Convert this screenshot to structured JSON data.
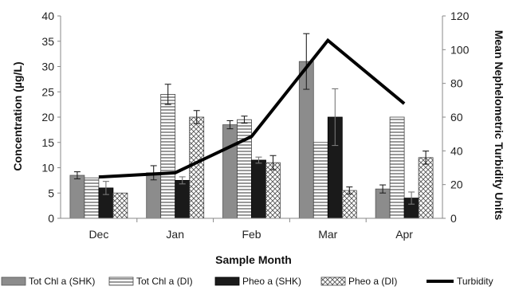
{
  "chart_data": {
    "type": "bar",
    "categories": [
      "Dec",
      "Jan",
      "Feb",
      "Mar",
      "Apr"
    ],
    "xlabel": "Sample Month",
    "ylabel": "Concentration (µg/L)",
    "y2label": "Mean Nephelometric Turbidity  Units",
    "ylim": [
      0,
      40
    ],
    "y2lim": [
      0,
      120
    ],
    "yticks": [
      0,
      5,
      10,
      15,
      20,
      25,
      30,
      35,
      40
    ],
    "y2ticks": [
      0,
      20,
      40,
      60,
      80,
      100,
      120
    ],
    "legend_position": "bottom",
    "series": [
      {
        "name": "Tot Chl a (SHK)",
        "pattern": "solid-gray",
        "color": "#8c8c8c",
        "values": [
          8.5,
          9.0,
          18.5,
          31.0,
          5.8
        ],
        "errors": [
          0.7,
          1.4,
          0.8,
          5.5,
          0.8
        ]
      },
      {
        "name": "Tot Chl a (DI)",
        "pattern": "horizontal-stripes",
        "color": "#ffffff",
        "values": [
          8.0,
          24.5,
          19.5,
          15.0,
          20.0
        ],
        "errors": [
          0,
          2.0,
          0.7,
          0,
          0
        ]
      },
      {
        "name": "Pheo a (SHK)",
        "pattern": "solid-black",
        "color": "#1a1a1a",
        "values": [
          6.0,
          7.5,
          11.5,
          20.0,
          4.0
        ],
        "errors": [
          1.3,
          0.7,
          0.6,
          5.6,
          1.2
        ]
      },
      {
        "name": "Pheo a (DI)",
        "pattern": "crosshatch",
        "color": "#ffffff",
        "values": [
          5.0,
          20.0,
          11.0,
          5.5,
          12.0
        ],
        "errors": [
          0,
          1.3,
          1.4,
          0.7,
          1.3
        ]
      }
    ],
    "line_series": {
      "name": "Turbidity",
      "axis": "right",
      "color": "#000000",
      "values": [
        24.5,
        27.0,
        48.5,
        105.5,
        68.0
      ]
    }
  }
}
